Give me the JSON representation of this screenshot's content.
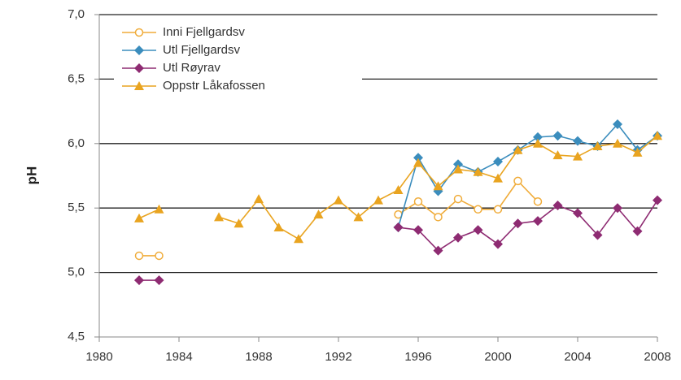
{
  "chart_data": {
    "type": "line",
    "y_label": "pH",
    "x": [
      1982,
      1983,
      1984,
      1985,
      1986,
      1987,
      1988,
      1989,
      1990,
      1991,
      1992,
      1993,
      1994,
      1995,
      1996,
      1997,
      1998,
      1999,
      2000,
      2001,
      2002,
      2003,
      2004,
      2005,
      2006,
      2007,
      2008
    ],
    "xlim": [
      1980,
      2008
    ],
    "xticks": [
      1980,
      1984,
      1988,
      1992,
      1996,
      2000,
      2004,
      2008
    ],
    "ylim": [
      4.5,
      7.0
    ],
    "yticks": [
      {
        "value": 4.5,
        "label": "4,5"
      },
      {
        "value": 5.0,
        "label": "5,0"
      },
      {
        "value": 5.5,
        "label": "5,5"
      },
      {
        "value": 6.0,
        "label": "6,0"
      },
      {
        "value": 6.5,
        "label": "6,5"
      },
      {
        "value": 7.0,
        "label": "7,0"
      }
    ],
    "grid": true,
    "legend": "top-left",
    "series": [
      {
        "name": "Inni Fjellgardsv",
        "color": "#f0ac3a",
        "marker": "open-circle",
        "values": [
          5.13,
          5.13,
          null,
          null,
          null,
          null,
          null,
          null,
          null,
          null,
          null,
          null,
          null,
          5.45,
          5.55,
          5.43,
          5.57,
          5.49,
          5.49,
          5.71,
          5.55,
          null,
          null,
          null,
          null,
          null,
          null
        ]
      },
      {
        "name": "Utl Fjellgardsv",
        "color": "#3b8dbd",
        "marker": "diamond",
        "values": [
          null,
          null,
          null,
          null,
          null,
          null,
          null,
          null,
          null,
          null,
          null,
          null,
          null,
          5.35,
          5.89,
          5.63,
          5.84,
          5.78,
          5.86,
          5.95,
          6.05,
          6.06,
          6.02,
          5.98,
          6.15,
          5.95,
          6.06
        ]
      },
      {
        "name": "Utl Røyrav",
        "color": "#8e2b72",
        "marker": "diamond",
        "values": [
          4.94,
          4.94,
          null,
          null,
          null,
          null,
          null,
          null,
          null,
          null,
          null,
          null,
          null,
          5.35,
          5.33,
          5.17,
          5.27,
          5.33,
          5.22,
          5.38,
          5.4,
          5.52,
          5.46,
          5.29,
          5.5,
          5.32,
          5.56
        ]
      },
      {
        "name": "Oppstr Låkafossen",
        "color": "#e9a420",
        "marker": "triangle",
        "values": [
          5.42,
          5.49,
          null,
          null,
          5.43,
          5.38,
          5.57,
          5.35,
          5.26,
          5.45,
          5.56,
          5.43,
          5.56,
          5.64,
          5.85,
          5.67,
          5.8,
          5.78,
          5.73,
          5.95,
          6.0,
          5.91,
          5.9,
          5.98,
          6.0,
          5.93,
          6.06
        ]
      }
    ]
  }
}
